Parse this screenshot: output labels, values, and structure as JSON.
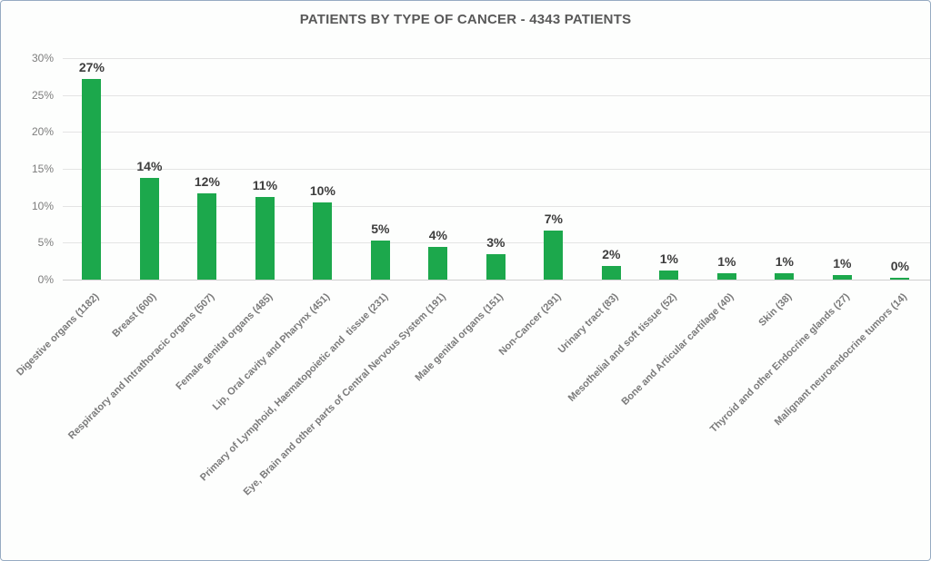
{
  "page": {
    "background": "#fdfefd",
    "border_color": "#96abc2"
  },
  "chart_data": {
    "type": "bar",
    "title": "PATIENTS BY TYPE OF CANCER - 4343 PATIENTS",
    "total_patients": 4343,
    "categories": [
      "Digestive organs (1182)",
      "Breast (600)",
      "Respiratory and Intrathoracic organs (507)",
      "Female genital organs (485)",
      "Lip, Oral cavity and Pharynx (451)",
      "Primary of Lymphoid, Haematopoietic and  tissue (231)",
      "Eye, Brain and other parts of Central Nervous System (191)",
      "Male genital organs (151)",
      "Non-Cancer (291)",
      "Urinary tract (83)",
      "Mesothelial and soft tissue (52)",
      "Bone and Articular cartilage (40)",
      "Skin (38)",
      "Thyroid and other Endocrine glands (27)",
      "Malignant neuroendocrine tumors (14)"
    ],
    "counts": [
      1182,
      600,
      507,
      485,
      451,
      231,
      191,
      151,
      291,
      83,
      52,
      40,
      38,
      27,
      14
    ],
    "values_pct": [
      27.2,
      13.8,
      11.7,
      11.2,
      10.4,
      5.3,
      4.4,
      3.5,
      6.7,
      1.9,
      1.2,
      0.9,
      0.9,
      0.6,
      0.3
    ],
    "bar_labels": [
      "27%",
      "14%",
      "12%",
      "11%",
      "10%",
      "5%",
      "4%",
      "3%",
      "7%",
      "2%",
      "1%",
      "1%",
      "1%",
      "1%",
      "0%"
    ],
    "xlabel": "",
    "ylabel": "",
    "ylim": [
      0,
      30
    ],
    "yticks": [
      "0%",
      "5%",
      "10%",
      "15%",
      "20%",
      "25%",
      "30%"
    ],
    "grid": true,
    "legend": null,
    "bar_color": "#1ca84c",
    "value_label_color": "#3d3d3d",
    "axis_text_color": "#7d7d7d",
    "category_label_color": "#7a7a7a",
    "title_color": "#595959",
    "gridline_color": "#e4e4e4",
    "baseline_color": "#cfcfcf"
  }
}
